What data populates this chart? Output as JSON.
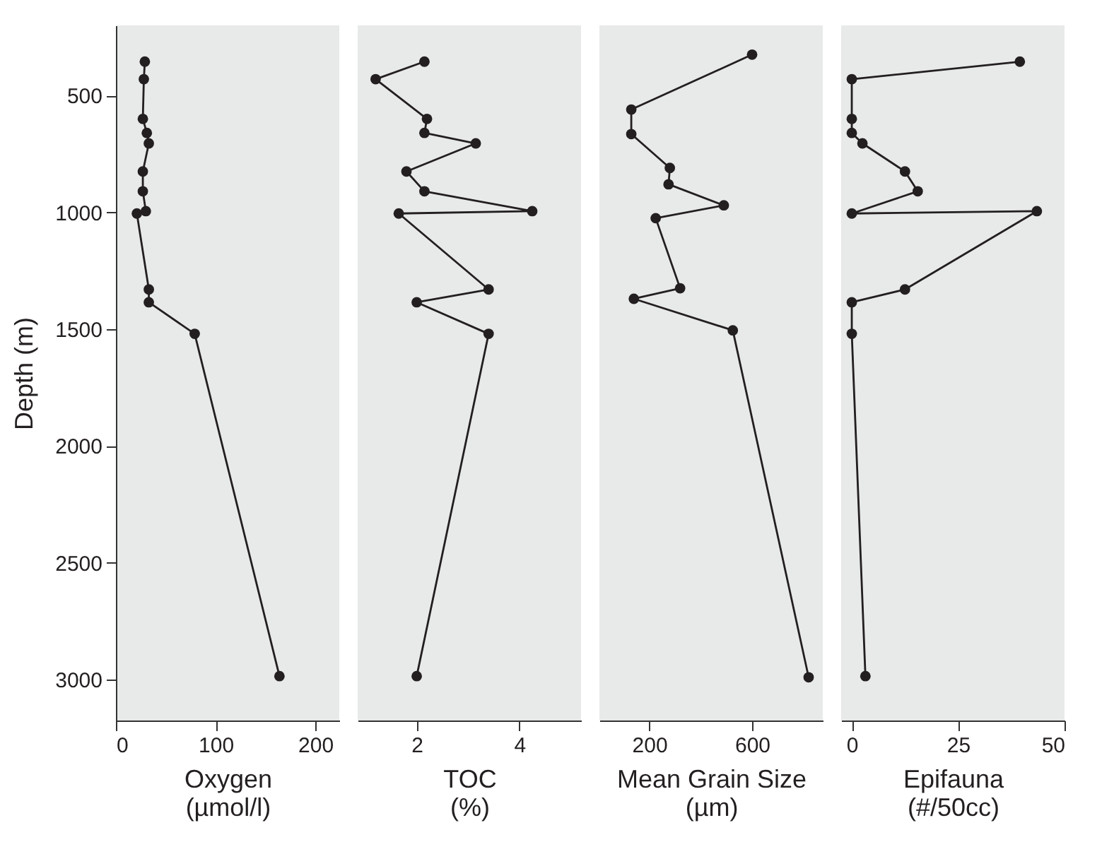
{
  "chart_data": [
    {
      "type": "line",
      "orientation": "horizontal",
      "ylabel": "Depth (m)",
      "xlabel": "Oxygen\n(µmol/l)",
      "marker": "circle",
      "line_style": "solid",
      "color": "#231f20",
      "x": [
        355,
        430,
        600,
        660,
        705,
        825,
        910,
        995,
        1005,
        1330,
        1385,
        1520,
        2985
      ],
      "values": [
        29,
        28,
        27,
        31,
        33,
        27,
        27,
        30,
        21,
        33,
        33,
        79,
        164
      ],
      "xlim": [
        0,
        224
      ],
      "xticks": [
        0,
        100,
        200
      ],
      "ylim": [
        3175,
        200
      ],
      "yticks": [
        500,
        1000,
        1500,
        2000,
        2500,
        3000
      ]
    },
    {
      "type": "line",
      "orientation": "horizontal",
      "xlabel": "TOC\n(%)",
      "marker": "circle",
      "line_style": "solid",
      "color": "#231f20",
      "tick_labels": "x",
      "x": [
        355,
        430,
        600,
        660,
        705,
        825,
        910,
        995,
        1005,
        1330,
        1385,
        1520,
        2985
      ],
      "values": [
        2.15,
        1.2,
        2.2,
        2.15,
        3.15,
        1.8,
        2.15,
        4.25,
        1.65,
        3.4,
        2.0,
        3.4,
        2.0
      ],
      "xlim": [
        0.85,
        5.2
      ],
      "xticks": [
        2,
        4
      ],
      "ylim": [
        3175,
        200
      ],
      "yticks": [
        500,
        1000,
        1500,
        2000,
        2500,
        3000
      ]
    },
    {
      "type": "line",
      "orientation": "horizontal",
      "xlabel": "Mean Grain Size\n(µm)",
      "marker": "circle",
      "line_style": "solid",
      "color": "#231f20",
      "tick_labels": "x",
      "x": [
        325,
        560,
        665,
        810,
        880,
        970,
        1025,
        1325,
        1370,
        1505,
        2990
      ],
      "values": [
        600,
        130,
        130,
        280,
        275,
        490,
        225,
        320,
        140,
        525,
        820
      ],
      "xlim": [
        6,
        875
      ],
      "xticks": [
        200,
        600
      ],
      "ylim": [
        3175,
        200
      ],
      "yticks": [
        500,
        1000,
        1500,
        2000,
        2500,
        3000
      ]
    },
    {
      "type": "line",
      "orientation": "horizontal",
      "xlabel": "Epifauna\n(#/50cc)",
      "marker": "circle",
      "line_style": "solid",
      "color": "#231f20",
      "tick_labels": "x",
      "x": [
        355,
        430,
        600,
        660,
        705,
        825,
        910,
        1005,
        995,
        1330,
        1385,
        1520,
        2985
      ],
      "values": [
        39.5,
        0,
        0,
        0,
        2.5,
        12.5,
        15.5,
        0,
        43.5,
        12.5,
        0,
        0,
        3.2
      ],
      "xlim": [
        -2.5,
        50
      ],
      "xticks": [
        0,
        25,
        50
      ],
      "ylim": [
        3175,
        200
      ],
      "yticks": [
        500,
        1000,
        1500,
        2000,
        2500,
        3000
      ]
    }
  ]
}
